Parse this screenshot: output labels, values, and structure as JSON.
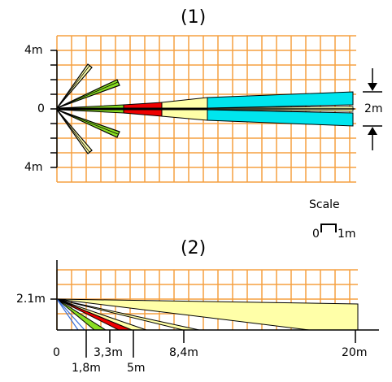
{
  "diagram1": {
    "title": "(1)",
    "y_label_top": "4m",
    "y_label_mid": "0",
    "y_label_bottom": "4m",
    "width_label": "2m"
  },
  "scale": {
    "title": "Scale",
    "from": "0",
    "to": "1m"
  },
  "diagram2": {
    "title": "(2)",
    "height_label": "2.1m",
    "x_ticks": [
      "0",
      "1,8m",
      "3,3m",
      "5m",
      "8,4m",
      "20m"
    ]
  },
  "colors": {
    "grid": "#f5a040",
    "yellow": "#ffffa8",
    "green": "#88dd22",
    "red": "#ee0000",
    "cyan": "#00e5ee"
  }
}
